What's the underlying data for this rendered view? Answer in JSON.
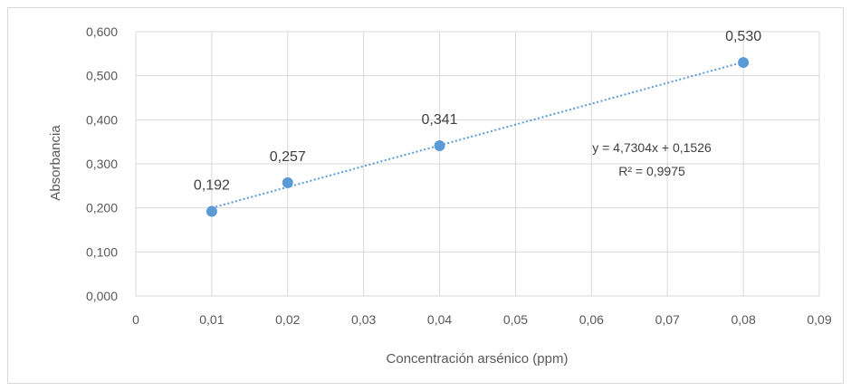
{
  "chart_data": {
    "type": "scatter",
    "title": "",
    "xlabel": "Concentración arsénico (ppm)",
    "ylabel": "Absorbancia",
    "xlim": [
      0,
      0.09
    ],
    "ylim": [
      0,
      0.6
    ],
    "x_ticks": [
      "0",
      "0,01",
      "0,02",
      "0,03",
      "0,04",
      "0,05",
      "0,06",
      "0,07",
      "0,08",
      "0,09"
    ],
    "y_ticks": [
      "0,000",
      "0,100",
      "0,200",
      "0,300",
      "0,400",
      "0,500",
      "0,600"
    ],
    "grid": true,
    "series": [
      {
        "x": [
          0.01,
          0.02,
          0.04,
          0.08
        ],
        "y": [
          0.192,
          0.257,
          0.341,
          0.53
        ],
        "labels": [
          "0,192",
          "0,257",
          "0,341",
          "0,530"
        ],
        "color": "#5b9bd5"
      }
    ],
    "trendline": {
      "type": "linear",
      "slope": 4.7304,
      "intercept": 0.1526,
      "equation": "y = 4,7304x + 0,1526",
      "r_squared": "R² = 0,9975",
      "color": "#5b9bd5",
      "style": "dotted"
    }
  },
  "colors": {
    "gridline": "#d9d9d9",
    "tick_text": "#595959",
    "label_text": "#404040"
  }
}
